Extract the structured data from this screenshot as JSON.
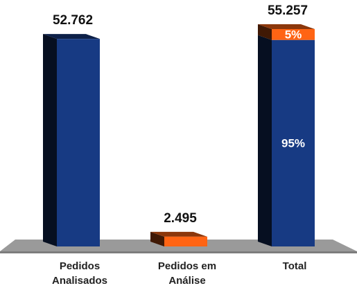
{
  "chart_data": {
    "type": "bar3d",
    "categories": [
      "Pedidos Analisados",
      "Pedidos em Análise",
      "Total"
    ],
    "values": [
      52762,
      2495,
      55257
    ],
    "value_labels": [
      "52.762",
      "2.495",
      "55.257"
    ],
    "colors": [
      "#173a83",
      "#ff6414",
      "#173a83"
    ],
    "split": {
      "values": [
        95,
        5
      ],
      "value_labels": [
        "95%",
        "5%"
      ],
      "colors": [
        "#173a83",
        "#ff6414"
      ]
    }
  }
}
